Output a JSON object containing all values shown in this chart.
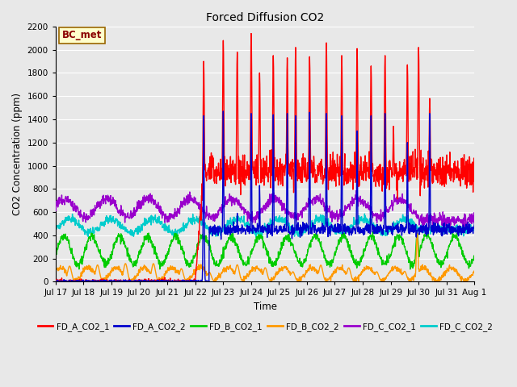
{
  "title": "Forced Diffusion CO2",
  "xlabel": "Time",
  "ylabel": "CO2 Concentration (ppm)",
  "ylim": [
    0,
    2200
  ],
  "yticks": [
    0,
    200,
    400,
    600,
    800,
    1000,
    1200,
    1400,
    1600,
    1800,
    2000,
    2200
  ],
  "bg_color": "#e8e8e8",
  "grid_color": "#ffffff",
  "annotation_text": "BC_met",
  "annotation_fg": "#8b0000",
  "annotation_bg": "#ffffcc",
  "annotation_edge": "#996600",
  "series_colors": {
    "FD_A_CO2_1": "#ff0000",
    "FD_A_CO2_2": "#0000cc",
    "FD_B_CO2_1": "#00cc00",
    "FD_B_CO2_2": "#ff9900",
    "FD_C_CO2_1": "#9900cc",
    "FD_C_CO2_2": "#00cccc"
  },
  "x_tick_labels": [
    "Jul 17",
    "Jul 18",
    "Jul 19",
    "Jul 20",
    "Jul 21",
    "Jul 22",
    "Jul 23",
    "Jul 24",
    "Jul 25",
    "Jul 26",
    "Jul 27",
    "Jul 28",
    "Jul 29",
    "Jul 30",
    "Jul 31",
    "Aug 1"
  ],
  "n_points": 1500,
  "total_days": 15
}
